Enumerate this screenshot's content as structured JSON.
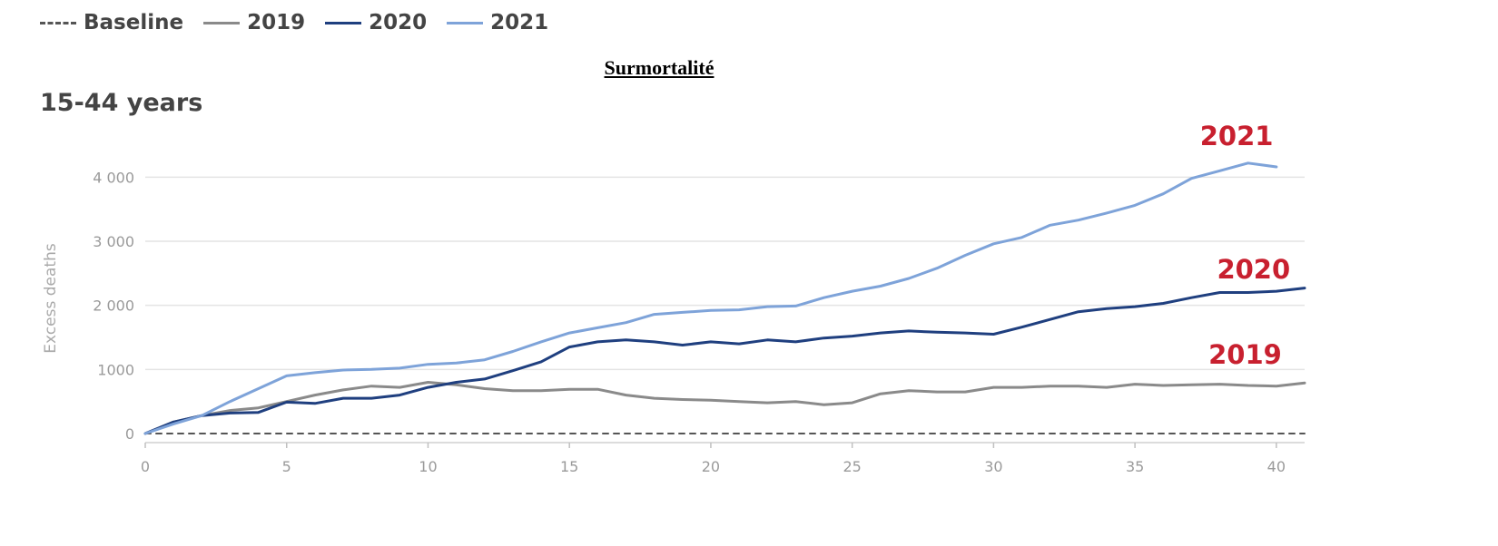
{
  "header": {
    "title": "Surmortalité"
  },
  "legend": [
    {
      "label": "Baseline",
      "color": "#555555",
      "dashed": true
    },
    {
      "label": "2019",
      "color": "#8a8a8a"
    },
    {
      "label": "2020",
      "color": "#1f3f7f"
    },
    {
      "label": "2021",
      "color": "#7ea3d9"
    }
  ],
  "chart_data": {
    "type": "line",
    "title": "",
    "subtitle": "15-44 years",
    "xlabel": "",
    "ylabel": "Excess deaths",
    "xlim": [
      0,
      41
    ],
    "ylim": [
      0,
      4500
    ],
    "x_ticks": [
      0,
      5,
      10,
      15,
      20,
      25,
      30,
      35,
      40
    ],
    "y_ticks": [
      0,
      1000,
      2000,
      3000,
      4000
    ],
    "x_tick_labels": [
      "0",
      "5",
      "10",
      "15",
      "20",
      "25",
      "30",
      "35",
      "40"
    ],
    "y_tick_labels": [
      "0",
      "1000",
      "2 000",
      "3 000",
      "4 000"
    ],
    "grid": true,
    "legend_position": "top-left",
    "series": [
      {
        "name": "Baseline",
        "color": "#555555",
        "dashed": true,
        "points": [
          [
            0,
            0
          ],
          [
            41,
            0
          ]
        ]
      },
      {
        "name": "2019",
        "color": "#8a8a8a",
        "label": "2019",
        "points": [
          [
            0,
            0
          ],
          [
            1,
            180
          ],
          [
            2,
            280
          ],
          [
            3,
            360
          ],
          [
            4,
            400
          ],
          [
            5,
            500
          ],
          [
            6,
            600
          ],
          [
            7,
            680
          ],
          [
            8,
            740
          ],
          [
            9,
            720
          ],
          [
            10,
            800
          ],
          [
            11,
            760
          ],
          [
            12,
            700
          ],
          [
            13,
            670
          ],
          [
            14,
            670
          ],
          [
            15,
            690
          ],
          [
            16,
            690
          ],
          [
            17,
            600
          ],
          [
            18,
            550
          ],
          [
            19,
            530
          ],
          [
            20,
            520
          ],
          [
            21,
            500
          ],
          [
            22,
            480
          ],
          [
            23,
            500
          ],
          [
            24,
            450
          ],
          [
            25,
            480
          ],
          [
            26,
            620
          ],
          [
            27,
            670
          ],
          [
            28,
            650
          ],
          [
            29,
            650
          ],
          [
            30,
            720
          ],
          [
            31,
            720
          ],
          [
            32,
            740
          ],
          [
            33,
            740
          ],
          [
            34,
            720
          ],
          [
            35,
            770
          ],
          [
            36,
            750
          ],
          [
            37,
            760
          ],
          [
            38,
            770
          ],
          [
            39,
            750
          ],
          [
            40,
            740
          ],
          [
            41,
            790
          ]
        ]
      },
      {
        "name": "2020",
        "color": "#1f3f7f",
        "label": "2020",
        "points": [
          [
            0,
            0
          ],
          [
            1,
            180
          ],
          [
            2,
            280
          ],
          [
            3,
            320
          ],
          [
            4,
            330
          ],
          [
            5,
            490
          ],
          [
            6,
            470
          ],
          [
            7,
            550
          ],
          [
            8,
            550
          ],
          [
            9,
            600
          ],
          [
            10,
            720
          ],
          [
            11,
            800
          ],
          [
            12,
            850
          ],
          [
            13,
            980
          ],
          [
            14,
            1120
          ],
          [
            15,
            1350
          ],
          [
            16,
            1430
          ],
          [
            17,
            1460
          ],
          [
            18,
            1430
          ],
          [
            19,
            1380
          ],
          [
            20,
            1430
          ],
          [
            21,
            1400
          ],
          [
            22,
            1460
          ],
          [
            23,
            1430
          ],
          [
            24,
            1490
          ],
          [
            25,
            1520
          ],
          [
            26,
            1570
          ],
          [
            27,
            1600
          ],
          [
            28,
            1580
          ],
          [
            29,
            1570
          ],
          [
            30,
            1550
          ],
          [
            31,
            1660
          ],
          [
            32,
            1780
          ],
          [
            33,
            1900
          ],
          [
            34,
            1950
          ],
          [
            35,
            1980
          ],
          [
            36,
            2030
          ],
          [
            37,
            2120
          ],
          [
            38,
            2200
          ],
          [
            39,
            2200
          ],
          [
            40,
            2220
          ],
          [
            41,
            2270
          ]
        ]
      },
      {
        "name": "2021",
        "color": "#7ea3d9",
        "label": "2021",
        "points": [
          [
            0,
            0
          ],
          [
            1,
            150
          ],
          [
            2,
            280
          ],
          [
            3,
            500
          ],
          [
            4,
            700
          ],
          [
            5,
            900
          ],
          [
            6,
            950
          ],
          [
            7,
            990
          ],
          [
            8,
            1000
          ],
          [
            9,
            1020
          ],
          [
            10,
            1080
          ],
          [
            11,
            1100
          ],
          [
            12,
            1150
          ],
          [
            13,
            1280
          ],
          [
            14,
            1430
          ],
          [
            15,
            1570
          ],
          [
            16,
            1650
          ],
          [
            17,
            1730
          ],
          [
            18,
            1860
          ],
          [
            19,
            1890
          ],
          [
            20,
            1920
          ],
          [
            21,
            1930
          ],
          [
            22,
            1980
          ],
          [
            23,
            1990
          ],
          [
            24,
            2120
          ],
          [
            25,
            2220
          ],
          [
            26,
            2300
          ],
          [
            27,
            2420
          ],
          [
            28,
            2580
          ],
          [
            29,
            2780
          ],
          [
            30,
            2960
          ],
          [
            31,
            3060
          ],
          [
            32,
            3250
          ],
          [
            33,
            3330
          ],
          [
            34,
            3440
          ],
          [
            35,
            3560
          ],
          [
            36,
            3740
          ],
          [
            37,
            3980
          ],
          [
            38,
            4100
          ],
          [
            39,
            4220
          ],
          [
            40,
            4160
          ]
        ]
      }
    ],
    "annotations": [
      {
        "text": "2021",
        "x": 37.3,
        "y": 4500,
        "color": "#c8202f"
      },
      {
        "text": "2020",
        "x": 37.9,
        "y": 2420,
        "color": "#c8202f"
      },
      {
        "text": "2019",
        "x": 37.6,
        "y": 1090,
        "color": "#c8202f"
      }
    ]
  }
}
